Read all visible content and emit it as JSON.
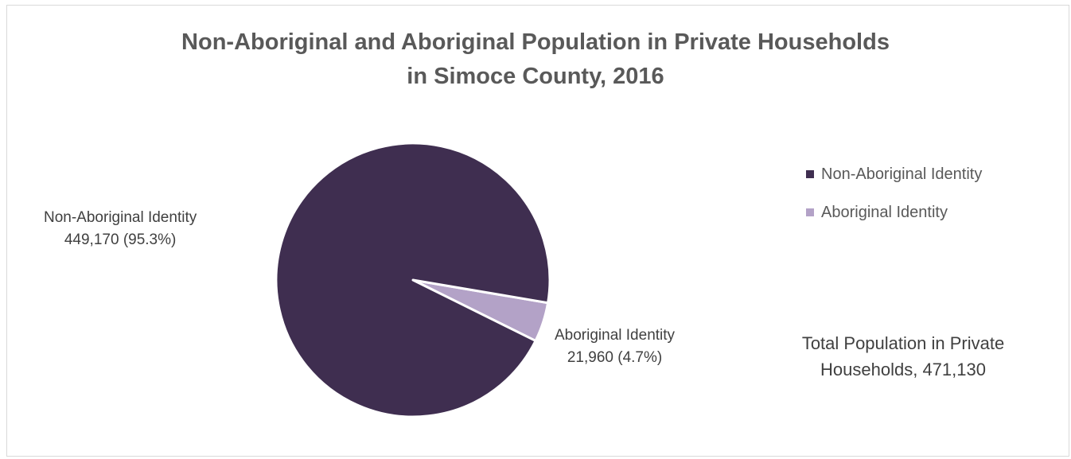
{
  "chart_data": {
    "type": "pie",
    "title_line1": "Non-Aboriginal and Aboriginal Population in Private Households",
    "title_line2": "in Simoce County, 2016",
    "slices": [
      {
        "name": "Non-Aboriginal Identity",
        "value": 449170,
        "value_label": "449,170 (95.3%)",
        "percent": 95.3,
        "color": "#3f2e50"
      },
      {
        "name": "Aboriginal Identity",
        "value": 21960,
        "value_label": "21,960 (4.7%)",
        "percent": 4.7,
        "color": "#b3a2c7"
      }
    ],
    "legend_position": "right",
    "total_line1": "Total Population in Private",
    "total_line2": "Households, 471,130"
  }
}
